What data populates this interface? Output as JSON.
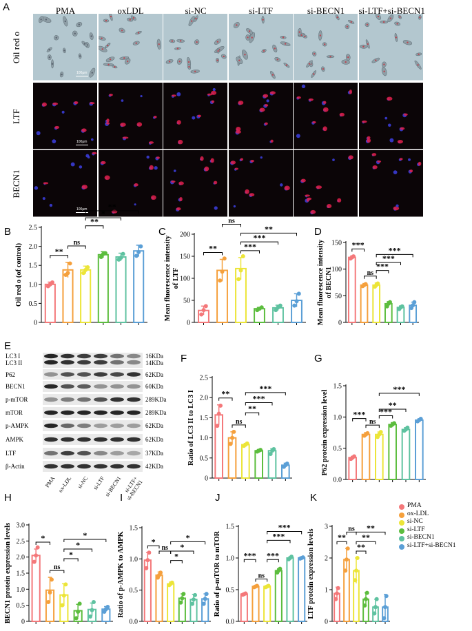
{
  "panel_letters": {
    "A": "A",
    "B": "B",
    "C": "C",
    "D": "D",
    "E": "E",
    "F": "F",
    "G": "G",
    "H": "H",
    "I": "I",
    "J": "J",
    "K": "K"
  },
  "groups": [
    "PMA",
    "oxLDL",
    "si-NC",
    "si-LTF",
    "si-BECN1",
    "si-LTF+si-BECN1"
  ],
  "micro_rows": [
    "Oil red o",
    "LTF",
    "BECN1"
  ],
  "scale_label": "100μm",
  "colors": {
    "PMA": "#f4787a",
    "oxLDL": "#f5a03c",
    "siNC": "#ece538",
    "siLTF": "#5cbd3e",
    "siBECN1": "#5ec2a0",
    "combo": "#5b9fd6",
    "oil_bg": "#b3c7cf",
    "fluor_bg": "#0b0507"
  },
  "legend": [
    "PMA",
    "ox-LDL",
    "si-NC",
    "si-LTF",
    "si-BECN1",
    "si-LTF+si-BECN1"
  ],
  "western": {
    "rows": [
      {
        "label": "LC3 I\nLC3 II",
        "kda": "16KDa\n14KDa"
      },
      {
        "label": "P62",
        "kda": "62KDa"
      },
      {
        "label": "BECN1",
        "kda": "60KDa"
      },
      {
        "label": "p-mTOR",
        "kda": "289KDa"
      },
      {
        "label": "mTOR",
        "kda": "289KDa"
      },
      {
        "label": "p-AMPK",
        "kda": "62KDa"
      },
      {
        "label": "AMPK",
        "kda": "62KDa"
      },
      {
        "label": "LTF",
        "kda": "37KDa"
      },
      {
        "label": "β-Actin",
        "kda": "42KDa"
      }
    ],
    "lanes": [
      "PMA",
      "ox-LDL",
      "si-NC",
      "si-LTF",
      "si-BECN1",
      "si-LTF+\nsi-BECN1"
    ]
  },
  "chart_data": [
    {
      "id": "B",
      "type": "bar",
      "ylabel": "Oil red o (of control)",
      "ylim": [
        0,
        2.5
      ],
      "yticks": [
        "0",
        "0.5",
        "1.0",
        "1.5",
        "2.0",
        "2.5"
      ],
      "values": [
        1.0,
        1.38,
        1.38,
        1.78,
        1.72,
        1.88
      ],
      "errors": [
        0.06,
        0.2,
        0.1,
        0.08,
        0.1,
        0.15
      ],
      "points": [
        [
          0.95,
          1.0,
          1.05
        ],
        [
          1.25,
          1.3,
          1.55
        ],
        [
          1.3,
          1.38,
          1.45
        ],
        [
          1.72,
          1.8,
          1.82
        ],
        [
          1.65,
          1.7,
          1.8
        ],
        [
          1.75,
          1.85,
          2.0
        ]
      ],
      "sig": [
        {
          "a": 0,
          "b": 1,
          "t": "**",
          "lv": 1
        },
        {
          "a": 1,
          "b": 2,
          "t": "ns",
          "lv": 2
        },
        {
          "a": 2,
          "b": 3,
          "t": "**",
          "lv": 3
        },
        {
          "a": 2,
          "b": 4,
          "t": "*",
          "lv": 4
        },
        {
          "a": 2,
          "b": 5,
          "t": "**",
          "lv": 5
        }
      ]
    },
    {
      "id": "C",
      "type": "bar",
      "ylabel": "Mean fluorescence intensity\nof LTF",
      "ylim": [
        0,
        200
      ],
      "yticks": [
        "0",
        "50",
        "100",
        "150",
        "200"
      ],
      "values": [
        27,
        118,
        122,
        31,
        33,
        50
      ],
      "errors": [
        10,
        25,
        25,
        3,
        6,
        15
      ],
      "points": [
        [
          18,
          28,
          37
        ],
        [
          95,
          115,
          145
        ],
        [
          98,
          118,
          150
        ],
        [
          28,
          31,
          34
        ],
        [
          28,
          34,
          38
        ],
        [
          38,
          48,
          65
        ]
      ],
      "sig": [
        {
          "a": 0,
          "b": 1,
          "t": "**",
          "lv": 1
        },
        {
          "a": 1,
          "b": 2,
          "t": "ns",
          "lv": 4
        },
        {
          "a": 2,
          "b": 3,
          "t": "***",
          "lv": 1
        },
        {
          "a": 2,
          "b": 4,
          "t": "***",
          "lv": 2
        },
        {
          "a": 2,
          "b": 5,
          "t": "**",
          "lv": 3
        }
      ]
    },
    {
      "id": "D",
      "type": "bar",
      "ylabel": "Mean fluorescence intensity\nof BECN1",
      "ylim": [
        0,
        150
      ],
      "yticks": [
        "0",
        "50",
        "100",
        "150"
      ],
      "values": [
        122,
        70,
        70,
        35,
        28,
        32
      ],
      "errors": [
        3,
        3,
        4,
        4,
        3,
        6
      ],
      "points": [
        [
          120,
          122,
          124
        ],
        [
          68,
          70,
          72
        ],
        [
          67,
          70,
          73
        ],
        [
          30,
          35,
          38
        ],
        [
          25,
          28,
          30
        ],
        [
          27,
          32,
          38
        ]
      ],
      "sig": [
        {
          "a": 0,
          "b": 1,
          "t": "***",
          "lv": 1
        },
        {
          "a": 1,
          "b": 2,
          "t": "ns",
          "lv": 0
        },
        {
          "a": 2,
          "b": 3,
          "t": "***",
          "lv": 1
        },
        {
          "a": 2,
          "b": 4,
          "t": "***",
          "lv": 2
        },
        {
          "a": 2,
          "b": 5,
          "t": "***",
          "lv": 3
        }
      ]
    },
    {
      "id": "F",
      "type": "bar",
      "ylabel": "Ratio of LC3 II to LC3 I",
      "ylim": [
        0,
        2.5
      ],
      "yticks": [
        "0",
        "0.5",
        "1.0",
        "1.5",
        "2.0",
        "2.5"
      ],
      "values": [
        1.57,
        1.0,
        0.83,
        0.68,
        0.68,
        0.32
      ],
      "errors": [
        0.25,
        0.15,
        0.03,
        0.03,
        0.05,
        0.05
      ],
      "points": [
        [
          1.3,
          1.6,
          1.8
        ],
        [
          0.85,
          1.0,
          1.15
        ],
        [
          0.8,
          0.83,
          0.86
        ],
        [
          0.66,
          0.68,
          0.7
        ],
        [
          0.6,
          0.68,
          0.72
        ],
        [
          0.28,
          0.32,
          0.36
        ]
      ],
      "sig": [
        {
          "a": 0,
          "b": 1,
          "t": "**",
          "lv": 1
        },
        {
          "a": 1,
          "b": 2,
          "t": "ns",
          "lv": 0
        },
        {
          "a": 2,
          "b": 3,
          "t": "**",
          "lv": 1
        },
        {
          "a": 2,
          "b": 4,
          "t": "***",
          "lv": 2
        },
        {
          "a": 2,
          "b": 5,
          "t": "***",
          "lv": 3
        }
      ]
    },
    {
      "id": "G",
      "type": "bar",
      "ylabel": "P62 protein expression level",
      "ylim": [
        0,
        1.5
      ],
      "yticks": [
        "0.0",
        "0.5",
        "1.0",
        "1.5"
      ],
      "values": [
        0.35,
        0.72,
        0.72,
        0.88,
        0.8,
        0.95
      ],
      "errors": [
        0.02,
        0.03,
        0.04,
        0.03,
        0.03,
        0.02
      ],
      "points": [
        [
          0.33,
          0.35,
          0.37
        ],
        [
          0.7,
          0.72,
          0.74
        ],
        [
          0.68,
          0.72,
          0.76
        ],
        [
          0.86,
          0.88,
          0.9
        ],
        [
          0.78,
          0.8,
          0.83
        ],
        [
          0.93,
          0.95,
          0.97
        ]
      ],
      "sig": [
        {
          "a": 0,
          "b": 1,
          "t": "***",
          "lv": 1
        },
        {
          "a": 1,
          "b": 2,
          "t": "ns",
          "lv": 0
        },
        {
          "a": 2,
          "b": 3,
          "t": "***",
          "lv": 1
        },
        {
          "a": 2,
          "b": 4,
          "t": "**",
          "lv": 2
        },
        {
          "a": 2,
          "b": 5,
          "t": "***",
          "lv": 3
        }
      ]
    },
    {
      "id": "H",
      "type": "bar",
      "ylabel": "BECN1 protein expression levels",
      "ylim": [
        0,
        3
      ],
      "yticks": [
        "0",
        "0.5",
        "1.0",
        "1.5",
        "2.0",
        "2.5",
        "3.0"
      ],
      "values": [
        2.05,
        0.97,
        0.82,
        0.33,
        0.37,
        0.38
      ],
      "errors": [
        0.2,
        0.4,
        0.35,
        0.2,
        0.2,
        0.08
      ],
      "points": [
        [
          1.85,
          2.05,
          2.3
        ],
        [
          0.6,
          0.9,
          1.3
        ],
        [
          0.5,
          0.8,
          1.15
        ],
        [
          0.1,
          0.3,
          0.55
        ],
        [
          0.15,
          0.35,
          0.6
        ],
        [
          0.3,
          0.38,
          0.45
        ]
      ],
      "sig": [
        {
          "a": 0,
          "b": 1,
          "t": "*",
          "lv": 1
        },
        {
          "a": 1,
          "b": 2,
          "t": "ns",
          "lv": 0
        },
        {
          "a": 2,
          "b": 3,
          "t": "*",
          "lv": 1
        },
        {
          "a": 2,
          "b": 4,
          "t": "*",
          "lv": 2
        },
        {
          "a": 2,
          "b": 5,
          "t": "*",
          "lv": 3
        }
      ]
    },
    {
      "id": "I",
      "type": "bar",
      "ylabel": "Ratio of p-AMPK to AMPK",
      "ylim": [
        0,
        1.5
      ],
      "yticks": [
        "0.0",
        "0.5",
        "1.0",
        "1.5"
      ],
      "values": [
        0.98,
        0.74,
        0.6,
        0.37,
        0.35,
        0.36
      ],
      "errors": [
        0.12,
        0.05,
        0.03,
        0.07,
        0.08,
        0.08
      ],
      "points": [
        [
          0.85,
          0.98,
          1.1
        ],
        [
          0.7,
          0.74,
          0.78
        ],
        [
          0.58,
          0.6,
          0.62
        ],
        [
          0.3,
          0.37,
          0.44
        ],
        [
          0.28,
          0.35,
          0.42
        ],
        [
          0.28,
          0.36,
          0.44
        ]
      ],
      "sig": [
        {
          "a": 0,
          "b": 1,
          "t": "*",
          "lv": 1
        },
        {
          "a": 1,
          "b": 2,
          "t": "ns",
          "lv": 2
        },
        {
          "a": 2,
          "b": 3,
          "t": "*",
          "lv": 1
        },
        {
          "a": 2,
          "b": 4,
          "t": "*",
          "lv": 2
        },
        {
          "a": 2,
          "b": 5,
          "t": "*",
          "lv": 3
        }
      ]
    },
    {
      "id": "J",
      "type": "bar",
      "ylabel": "Ratio of p-mTOR to mTOR",
      "ylim": [
        0,
        1.5
      ],
      "yticks": [
        "0.0",
        "0.5",
        "1.0",
        "1.5"
      ],
      "values": [
        0.43,
        0.55,
        0.55,
        0.8,
        1.0,
        1.0
      ],
      "errors": [
        0.01,
        0.01,
        0.01,
        0.03,
        0.02,
        0.01
      ],
      "points": [
        [
          0.42,
          0.43,
          0.44
        ],
        [
          0.54,
          0.55,
          0.56
        ],
        [
          0.54,
          0.55,
          0.56
        ],
        [
          0.77,
          0.8,
          0.83
        ],
        [
          0.98,
          1.0,
          1.02
        ],
        [
          0.99,
          1.0,
          1.01
        ]
      ],
      "sig": [
        {
          "a": 0,
          "b": 1,
          "t": "***",
          "lv": 1
        },
        {
          "a": 1,
          "b": 2,
          "t": "ns",
          "lv": 0
        },
        {
          "a": 2,
          "b": 3,
          "t": "***",
          "lv": 1
        },
        {
          "a": 2,
          "b": 4,
          "t": "***",
          "lv": 2
        },
        {
          "a": 2,
          "b": 5,
          "t": "***",
          "lv": 3
        }
      ]
    },
    {
      "id": "K",
      "type": "bar",
      "ylabel": "LTF protein expression levels",
      "ylim": [
        0,
        3
      ],
      "yticks": [
        "0",
        "1",
        "2",
        "3"
      ],
      "values": [
        0.88,
        1.95,
        1.6,
        0.7,
        0.45,
        0.45
      ],
      "errors": [
        0.2,
        0.35,
        0.4,
        0.2,
        0.25,
        0.4
      ],
      "points": [
        [
          0.7,
          0.88,
          1.05
        ],
        [
          1.6,
          1.95,
          2.3
        ],
        [
          1.3,
          1.6,
          2.0
        ],
        [
          0.5,
          0.7,
          0.9
        ],
        [
          0.25,
          0.45,
          0.7
        ],
        [
          0.1,
          0.45,
          0.8
        ]
      ],
      "sig": [
        {
          "a": 0,
          "b": 1,
          "t": "**",
          "lv": 1
        },
        {
          "a": 1,
          "b": 2,
          "t": "ns",
          "lv": 2
        },
        {
          "a": 2,
          "b": 3,
          "t": "**",
          "lv": 1
        },
        {
          "a": 2,
          "b": 4,
          "t": "**",
          "lv": 2
        },
        {
          "a": 2,
          "b": 5,
          "t": "**",
          "lv": 3
        }
      ]
    }
  ]
}
